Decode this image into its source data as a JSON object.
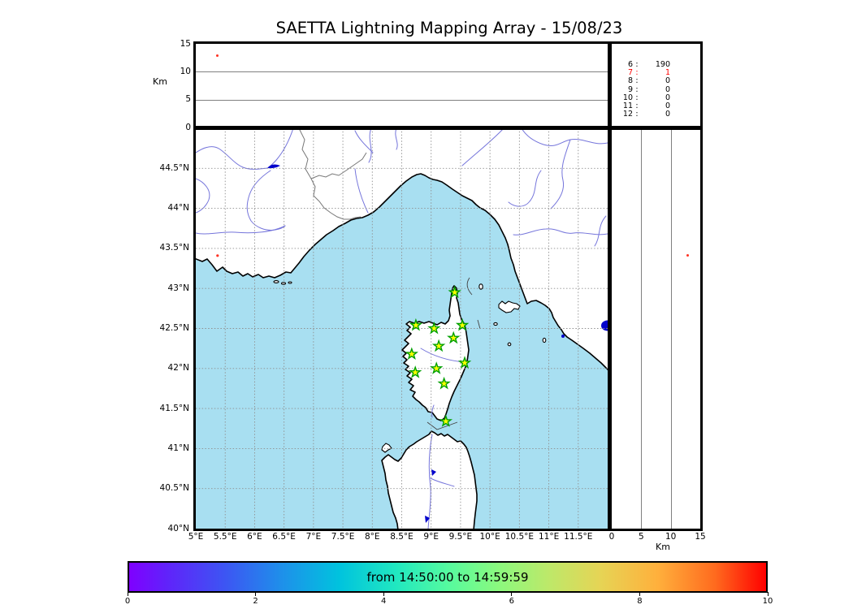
{
  "title": "SAETTA Lightning Mapping Array - 15/08/23",
  "altitude_panel": {
    "ylabel": "Km",
    "ylim": [
      0,
      15
    ],
    "yticks": [
      {
        "value": 0,
        "label": "0"
      },
      {
        "value": 5,
        "label": "5"
      },
      {
        "value": 10,
        "label": "10"
      },
      {
        "value": 15,
        "label": "15"
      }
    ],
    "gridlines_km": [
      5,
      10
    ]
  },
  "stats_panel": {
    "rows": [
      {
        "level": "6",
        "count": "190",
        "highlight": false
      },
      {
        "level": "7",
        "count": "1",
        "highlight": true
      },
      {
        "level": "8",
        "count": "0",
        "highlight": false
      },
      {
        "level": "9",
        "count": "0",
        "highlight": false
      },
      {
        "level": "10",
        "count": "0",
        "highlight": false
      },
      {
        "level": "11",
        "count": "0",
        "highlight": false
      },
      {
        "level": "12",
        "count": "0",
        "highlight": false
      }
    ]
  },
  "map_panel": {
    "lon_lim": [
      5,
      12
    ],
    "lat_lim": [
      40,
      45
    ],
    "lon_ticks": [
      {
        "value": 5,
        "label": "5°E"
      },
      {
        "value": 5.5,
        "label": "5.5°E"
      },
      {
        "value": 6,
        "label": "6°E"
      },
      {
        "value": 6.5,
        "label": "6.5°E"
      },
      {
        "value": 7,
        "label": "7°E"
      },
      {
        "value": 7.5,
        "label": "7.5°E"
      },
      {
        "value": 8,
        "label": "8°E"
      },
      {
        "value": 8.5,
        "label": "8.5°E"
      },
      {
        "value": 9,
        "label": "9°E"
      },
      {
        "value": 9.5,
        "label": "9.5°E"
      },
      {
        "value": 10,
        "label": "10°E"
      },
      {
        "value": 10.5,
        "label": "10.5°E"
      },
      {
        "value": 11,
        "label": "11°E"
      },
      {
        "value": 11.5,
        "label": "11.5°E"
      }
    ],
    "lat_ticks": [
      {
        "value": 44.5,
        "label": "44.5°N"
      },
      {
        "value": 44,
        "label": "44°N"
      },
      {
        "value": 43.5,
        "label": "43.5°N"
      },
      {
        "value": 43,
        "label": "43°N"
      },
      {
        "value": 42.5,
        "label": "42.5°N"
      },
      {
        "value": 42,
        "label": "42°N"
      },
      {
        "value": 41.5,
        "label": "41.5°N"
      },
      {
        "value": 41,
        "label": "41°N"
      },
      {
        "value": 40.5,
        "label": "40.5°N"
      },
      {
        "value": 40,
        "label": "40°N"
      }
    ],
    "stations": [
      {
        "lon": 9.4,
        "lat": 42.95
      },
      {
        "lon": 8.74,
        "lat": 42.54
      },
      {
        "lon": 9.05,
        "lat": 42.5
      },
      {
        "lon": 9.53,
        "lat": 42.54
      },
      {
        "lon": 9.38,
        "lat": 42.38
      },
      {
        "lon": 9.13,
        "lat": 42.28
      },
      {
        "lon": 8.67,
        "lat": 42.18
      },
      {
        "lon": 9.57,
        "lat": 42.07
      },
      {
        "lon": 9.09,
        "lat": 42.0
      },
      {
        "lon": 8.73,
        "lat": 41.95
      },
      {
        "lon": 9.22,
        "lat": 41.81
      },
      {
        "lon": 9.25,
        "lat": 41.34
      }
    ]
  },
  "right_panel": {
    "xlabel": "Km",
    "xlim": [
      0,
      15
    ],
    "xticks": [
      {
        "value": 0,
        "label": "0"
      },
      {
        "value": 5,
        "label": "5"
      },
      {
        "value": 10,
        "label": "10"
      },
      {
        "value": 15,
        "label": "15"
      }
    ],
    "gridlines_km": [
      5,
      10
    ]
  },
  "event": {
    "lon": 5.37,
    "lat": 43.41,
    "alt_km": 12.9
  },
  "colorbar": {
    "label": "from 14:50:00 to 14:59:59",
    "range": [
      0,
      10
    ],
    "colormap": "rainbow",
    "ticks": [
      {
        "value": 0,
        "label": "0"
      },
      {
        "value": 2,
        "label": "2"
      },
      {
        "value": 4,
        "label": "4"
      },
      {
        "value": 6,
        "label": "6"
      },
      {
        "value": 8,
        "label": "8"
      },
      {
        "value": 10,
        "label": "10"
      }
    ]
  },
  "colors": {
    "sea": "#A8DFF1",
    "land": "#FFFFFF",
    "coast": "#000000",
    "river": "#7575DB",
    "border_line": "#787878",
    "grid": "#8F8F8F",
    "lake": "#0000CC",
    "station_fill": "#FFFF00",
    "station_stroke": "#00A000",
    "event": "#FF3222",
    "highlight": "#FF0000"
  },
  "chart_data": {
    "type": "scatter",
    "title": "SAETTA Lightning Mapping Array - 15/08/23",
    "time_window": {
      "from": "14:50:00",
      "to": "14:59:59"
    },
    "panels": [
      {
        "id": "altitude-vs-longitude",
        "ylabel": "Km",
        "ylim": [
          0,
          15
        ],
        "xlim_deg_e": [
          5,
          12
        ],
        "points": [
          {
            "lon_deg_e": 5.37,
            "alt_km": 12.9
          }
        ]
      },
      {
        "id": "counts-by-level",
        "highlighted_level": 7,
        "rows": [
          {
            "level": 6,
            "count": 190
          },
          {
            "level": 7,
            "count": 1
          },
          {
            "level": 8,
            "count": 0
          },
          {
            "level": 9,
            "count": 0
          },
          {
            "level": 10,
            "count": 0
          },
          {
            "level": 11,
            "count": 0
          },
          {
            "level": 12,
            "count": 0
          }
        ]
      },
      {
        "id": "map",
        "xlim_deg_e": [
          5,
          12
        ],
        "ylim_deg_n": [
          40,
          45
        ],
        "grid_step_deg": 0.5,
        "stations_lon_lat": [
          [
            9.4,
            42.95
          ],
          [
            8.74,
            42.54
          ],
          [
            9.05,
            42.5
          ],
          [
            9.53,
            42.54
          ],
          [
            9.38,
            42.38
          ],
          [
            9.13,
            42.28
          ],
          [
            8.67,
            42.18
          ],
          [
            9.57,
            42.07
          ],
          [
            9.09,
            42.0
          ],
          [
            8.73,
            41.95
          ],
          [
            9.22,
            41.81
          ],
          [
            9.25,
            41.34
          ]
        ],
        "points": [
          {
            "lon_deg_e": 5.37,
            "lat_deg_n": 43.41
          }
        ]
      },
      {
        "id": "altitude-vs-latitude",
        "xlabel": "Km",
        "xlim": [
          0,
          15
        ],
        "ylim_deg_n": [
          40,
          45
        ],
        "points": [
          {
            "alt_km": 12.9,
            "lat_deg_n": 43.41
          }
        ]
      }
    ],
    "colorbar": {
      "label": "from 14:50:00 to 14:59:59",
      "range": [
        0,
        10
      ],
      "ticks": [
        0,
        2,
        4,
        6,
        8,
        10
      ],
      "colormap": "rainbow"
    }
  }
}
